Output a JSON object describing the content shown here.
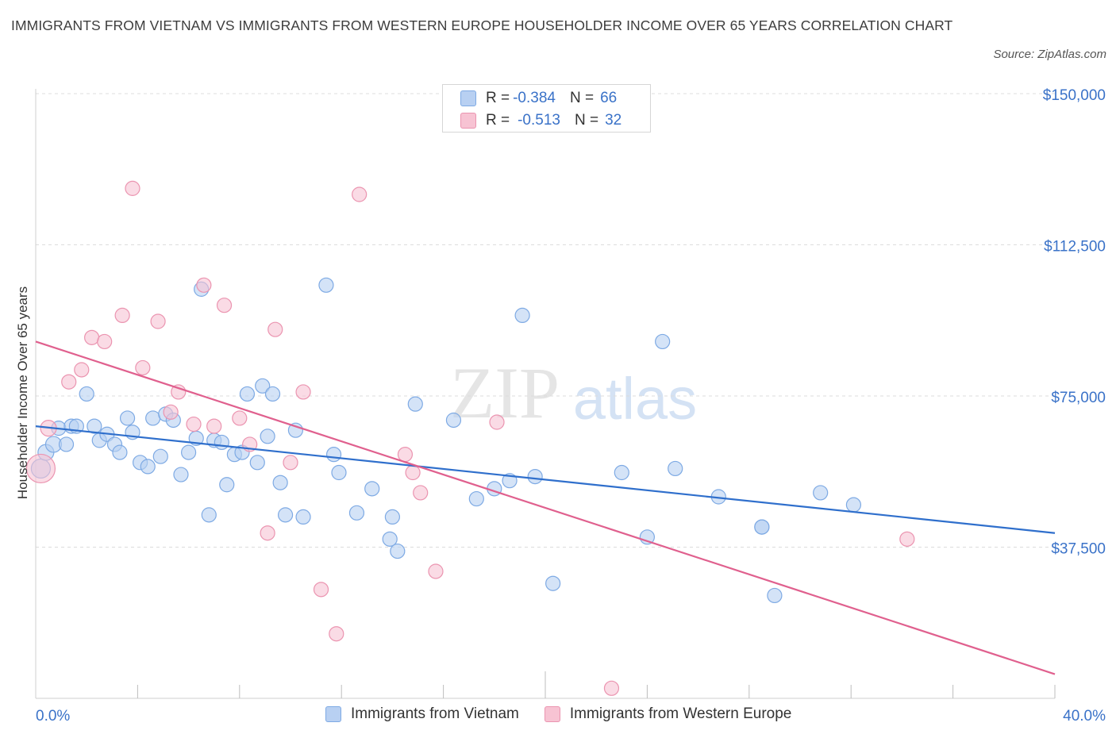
{
  "title": "IMMIGRANTS FROM VIETNAM VS IMMIGRANTS FROM WESTERN EUROPE HOUSEHOLDER INCOME OVER 65 YEARS CORRELATION CHART",
  "source": "Source: ZipAtlas.com",
  "watermark": {
    "zip": "ZIP",
    "atlas": "atlas"
  },
  "colors": {
    "blue_fill": "#b8d0f2",
    "blue_stroke": "#7eaae4",
    "blue_line": "#2f6fcc",
    "pink_fill": "#f7c3d3",
    "pink_stroke": "#eb94b0",
    "pink_line": "#e0608e",
    "axis_label": "#3a72c8",
    "grid": "#dcdcdc"
  },
  "legend": {
    "rows": [
      {
        "r_label": "R =",
        "r_value": "-0.384",
        "n_label": "N =",
        "n_value": "66",
        "color": "blue"
      },
      {
        "r_label": "R =",
        "r_value": "-0.513",
        "n_label": "N =",
        "n_value": "32",
        "color": "pink"
      }
    ]
  },
  "bottom_legend": [
    "Immigrants from Vietnam",
    "Immigrants from Western Europe"
  ],
  "chart_data": {
    "type": "scatter",
    "title": "IMMIGRANTS FROM VIETNAM VS IMMIGRANTS FROM WESTERN EUROPE HOUSEHOLDER INCOME OVER 65 YEARS CORRELATION CHART",
    "xlabel": "",
    "ylabel": "Householder Income Over 65 years",
    "xlim": [
      0,
      40
    ],
    "ylim": [
      0,
      150000
    ],
    "x_tick_labels": [
      "0.0%",
      "40.0%"
    ],
    "y_ticks": [
      37500,
      75000,
      112500,
      150000
    ],
    "y_tick_labels": [
      "$37,500",
      "$75,000",
      "$112,500",
      "$150,000"
    ],
    "grid": "horizontal dashed",
    "legend_position": "top-center",
    "series": [
      {
        "name": "Immigrants from Vietnam",
        "color": "blue",
        "trend": {
          "x": [
            0,
            40
          ],
          "y": [
            67500,
            41000
          ]
        },
        "points": [
          [
            0.2,
            57000,
            12
          ],
          [
            0.4,
            61000,
            10
          ],
          [
            0.7,
            63000,
            10
          ],
          [
            0.9,
            67000,
            9
          ],
          [
            1.2,
            63000,
            9
          ],
          [
            1.4,
            67500,
            9
          ],
          [
            1.6,
            67500,
            9
          ],
          [
            2.0,
            75500,
            9
          ],
          [
            2.3,
            67500,
            9
          ],
          [
            2.5,
            64000,
            9
          ],
          [
            2.8,
            65500,
            9
          ],
          [
            3.1,
            63000,
            9
          ],
          [
            3.3,
            61000,
            9
          ],
          [
            3.6,
            69500,
            9
          ],
          [
            3.8,
            66000,
            9
          ],
          [
            4.1,
            58500,
            9
          ],
          [
            4.4,
            57500,
            9
          ],
          [
            4.6,
            69500,
            9
          ],
          [
            4.9,
            60000,
            9
          ],
          [
            5.1,
            70500,
            9
          ],
          [
            5.4,
            69000,
            9
          ],
          [
            5.7,
            55500,
            9
          ],
          [
            6.0,
            61000,
            9
          ],
          [
            6.3,
            64500,
            9
          ],
          [
            6.5,
            101500,
            9
          ],
          [
            6.8,
            45500,
            9
          ],
          [
            7.0,
            64000,
            9
          ],
          [
            7.3,
            63500,
            9
          ],
          [
            7.5,
            53000,
            9
          ],
          [
            7.8,
            60500,
            9
          ],
          [
            8.1,
            61000,
            9
          ],
          [
            8.3,
            75500,
            9
          ],
          [
            8.7,
            58500,
            9
          ],
          [
            8.9,
            77500,
            9
          ],
          [
            9.1,
            65000,
            9
          ],
          [
            9.3,
            75500,
            9
          ],
          [
            9.6,
            53500,
            9
          ],
          [
            9.8,
            45500,
            9
          ],
          [
            10.2,
            66500,
            9
          ],
          [
            10.5,
            45000,
            9
          ],
          [
            11.4,
            102500,
            9
          ],
          [
            11.7,
            60500,
            9
          ],
          [
            11.9,
            56000,
            9
          ],
          [
            12.6,
            46000,
            9
          ],
          [
            13.2,
            52000,
            9
          ],
          [
            13.9,
            39500,
            9
          ],
          [
            14.0,
            45000,
            9
          ],
          [
            14.2,
            36500,
            9
          ],
          [
            14.9,
            73000,
            9
          ],
          [
            16.4,
            69000,
            9
          ],
          [
            17.3,
            49500,
            9
          ],
          [
            18.0,
            52000,
            9
          ],
          [
            18.6,
            54000,
            9
          ],
          [
            19.1,
            95000,
            9
          ],
          [
            19.6,
            55000,
            9
          ],
          [
            20.3,
            28500,
            9
          ],
          [
            23.0,
            56000,
            9
          ],
          [
            24.0,
            40000,
            9
          ],
          [
            24.6,
            88500,
            9
          ],
          [
            25.1,
            57000,
            9
          ],
          [
            26.8,
            50000,
            9
          ],
          [
            28.5,
            42500,
            9
          ],
          [
            28.5,
            42500,
            9
          ],
          [
            29.0,
            25500,
            9
          ],
          [
            30.8,
            51000,
            9
          ],
          [
            32.1,
            48000,
            9
          ]
        ]
      },
      {
        "name": "Immigrants from Western Europe",
        "color": "pink",
        "trend": {
          "x": [
            0,
            40
          ],
          "y": [
            88500,
            6000
          ]
        },
        "points": [
          [
            0.2,
            57000,
            18
          ],
          [
            0.5,
            67000,
            10
          ],
          [
            1.3,
            78500,
            9
          ],
          [
            1.8,
            81500,
            9
          ],
          [
            2.2,
            89500,
            9
          ],
          [
            2.7,
            88500,
            9
          ],
          [
            3.4,
            95000,
            9
          ],
          [
            3.8,
            126500,
            9
          ],
          [
            4.2,
            82000,
            9
          ],
          [
            4.8,
            93500,
            9
          ],
          [
            5.3,
            71000,
            9
          ],
          [
            5.6,
            76000,
            9
          ],
          [
            6.2,
            68000,
            9
          ],
          [
            6.6,
            102500,
            9
          ],
          [
            7.0,
            67500,
            9
          ],
          [
            7.4,
            97500,
            9
          ],
          [
            8.0,
            69500,
            9
          ],
          [
            8.4,
            63000,
            9
          ],
          [
            9.1,
            41000,
            9
          ],
          [
            9.4,
            91500,
            9
          ],
          [
            10.0,
            58500,
            9
          ],
          [
            10.5,
            76000,
            9
          ],
          [
            11.2,
            27000,
            9
          ],
          [
            11.8,
            16000,
            9
          ],
          [
            12.7,
            125000,
            9
          ],
          [
            14.5,
            60500,
            9
          ],
          [
            14.8,
            56000,
            9
          ],
          [
            15.1,
            51000,
            9
          ],
          [
            15.7,
            31500,
            9
          ],
          [
            18.1,
            68500,
            9
          ],
          [
            22.6,
            2500,
            9
          ],
          [
            34.2,
            39500,
            9
          ]
        ]
      }
    ]
  }
}
